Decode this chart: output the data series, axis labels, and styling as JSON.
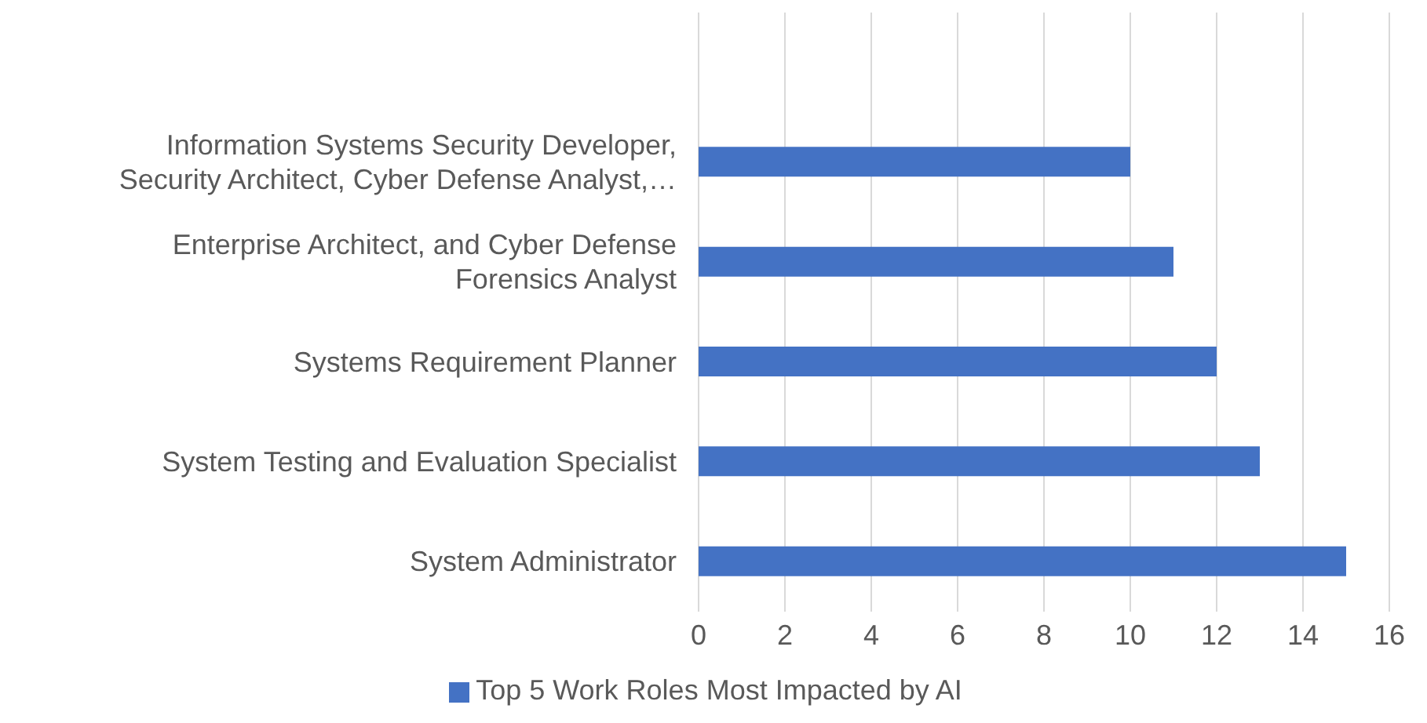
{
  "chart_data": {
    "type": "bar",
    "orientation": "horizontal",
    "categories": [
      null,
      "Information Systems Security Developer, Security Architect, Cyber Defense Analyst,…",
      "Enterprise Architect, and Cyber Defense Forensics Analyst",
      "Systems Requirement Planner",
      "System Testing and Evaluation Specialist",
      "System Administrator"
    ],
    "series": [
      {
        "name": "Top 5 Work Roles Most Impacted by AI",
        "color": "#4472c4",
        "values": [
          null,
          10,
          11,
          12,
          13,
          15
        ]
      }
    ],
    "xlim": [
      0,
      16
    ],
    "xticks": [
      0,
      2,
      4,
      6,
      8,
      10,
      12,
      14,
      16
    ],
    "grid": "x",
    "legend": "bottom"
  }
}
